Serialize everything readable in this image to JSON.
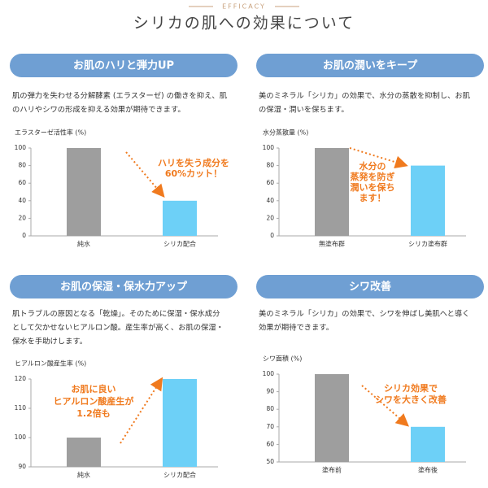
{
  "header": {
    "label": "EFFICACY",
    "title": "シリカの肌への効果について"
  },
  "sections": [
    {
      "heading": "お肌のハリと弾力UP",
      "text": [
        "肌の弾力を失わせる分解酵素 (エラスターゼ) の働きを抑え、肌",
        "のハリやシワの形成を抑える効果が期待できます。"
      ]
    },
    {
      "heading": "お肌の潤いをキープ",
      "text": [
        "美のミネラル「シリカ」の効果で、水分の蒸散を抑制し、お肌",
        "の保湿・潤いを保ちます。"
      ]
    },
    {
      "heading": "お肌の保湿・保水力アップ",
      "text": [
        "肌トラブルの原因となる「乾燥」。そのために保湿・保水成分",
        "として欠かせないヒアルロン酸。産生率が高く、お肌の保湿・",
        "保水を手助けします。"
      ]
    },
    {
      "heading": "シワ改善",
      "text": [
        "美のミネラル「シリカ」の効果で、シワを伸ばし美肌へと導く",
        "効果が期待できます。"
      ]
    }
  ],
  "chart_data": [
    {
      "type": "bar",
      "title": "エラスターゼ活性率 (%)",
      "categories": [
        "純水",
        "シリカ配合"
      ],
      "values": [
        100,
        40
      ],
      "colors": [
        "#9e9e9e",
        "#6dd0f7"
      ],
      "ylim": [
        0,
        100
      ],
      "yticks": [
        0,
        20,
        40,
        60,
        80,
        100
      ],
      "annotation": [
        "ハリを失う成分を",
        "60%カット！"
      ]
    },
    {
      "type": "bar",
      "title": "水分蒸散量 (%)",
      "categories": [
        "無塗布群",
        "シリカ塗布群"
      ],
      "values": [
        100,
        80
      ],
      "colors": [
        "#9e9e9e",
        "#6dd0f7"
      ],
      "ylim": [
        0,
        100
      ],
      "yticks": [
        0,
        20,
        40,
        60,
        80,
        100
      ],
      "annotation": [
        "水分の",
        "蒸発を防ぎ",
        "潤いを保ち",
        "ます！"
      ]
    },
    {
      "type": "bar",
      "title": "ヒアルロン酸産生率 (%)",
      "categories": [
        "純水",
        "シリカ配合"
      ],
      "values": [
        100,
        120
      ],
      "colors": [
        "#9e9e9e",
        "#6dd0f7"
      ],
      "ylim": [
        90,
        120
      ],
      "yticks": [
        90,
        100,
        110,
        120
      ],
      "annotation": [
        "お肌に良い",
        "ヒアルロン酸産生が",
        "1.2倍も"
      ]
    },
    {
      "type": "bar",
      "title": "シワ面積 (%)",
      "categories": [
        "塗布前",
        "塗布後"
      ],
      "values": [
        100,
        70
      ],
      "colors": [
        "#9e9e9e",
        "#6dd0f7"
      ],
      "ylim": [
        50,
        100
      ],
      "yticks": [
        50,
        60,
        70,
        80,
        90,
        100
      ],
      "annotation": [
        "シリカ効果で",
        "シワを大きく改善"
      ]
    }
  ]
}
